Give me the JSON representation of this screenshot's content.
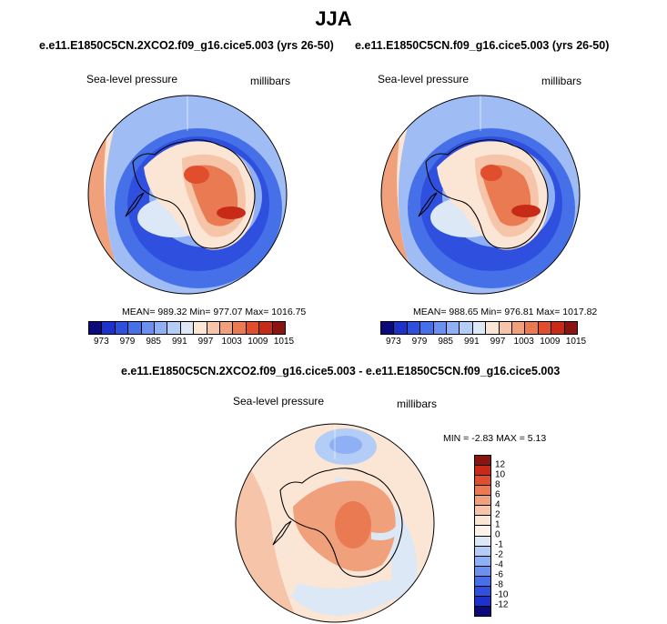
{
  "figure": {
    "title": "JJA"
  },
  "panels": [
    {
      "case": "e.e11.E1850C5CN.2XCO2.f09_g16.cice5.003 (yrs 26-50)",
      "variable": "Sea-level pressure",
      "units": "millibars",
      "stats": "MEAN= 989.32  Min= 977.07  Max= 1016.75"
    },
    {
      "case": "e.e11.E1850C5CN.f09_g16.cice5.003 (yrs 26-50)",
      "variable": "Sea-level pressure",
      "units": "millibars",
      "stats": "MEAN= 988.65  Min= 976.81  Max= 1017.82"
    },
    {
      "case": "e.e11.E1850C5CN.2XCO2.f09_g16.cice5.003 - e.e11.E1850C5CN.f09_g16.cice5.003",
      "variable": "Sea-level pressure",
      "units": "millibars",
      "stats": "MIN =  -2.83 MAX =  5.13"
    }
  ],
  "chart_data": [
    {
      "type": "heatmap",
      "projection": "south-polar-stereographic",
      "title": "e.e11.E1850C5CN.2XCO2.f09_g16.cice5.003 (yrs 26-50)",
      "field": "Sea-level pressure",
      "units": "millibars",
      "mean": 989.32,
      "min": 977.07,
      "max": 1016.75,
      "colorbar": {
        "orientation": "horizontal",
        "levels": [
          973,
          976,
          979,
          982,
          985,
          988,
          991,
          994,
          997,
          1000,
          1003,
          1006,
          1009,
          1012,
          1015
        ],
        "tick_labels": [
          "973",
          "979",
          "985",
          "991",
          "997",
          "1003",
          "1009",
          "1015"
        ],
        "colors": [
          "#0a0a7a",
          "#1c32c8",
          "#2f50de",
          "#4670e8",
          "#6a90f0",
          "#8fb0f4",
          "#b4cdf6",
          "#dce8f6",
          "#fbe6d6",
          "#f6c4a8",
          "#f0a07a",
          "#ea7a52",
          "#e04e2e",
          "#c82a18",
          "#8c1410"
        ]
      }
    },
    {
      "type": "heatmap",
      "projection": "south-polar-stereographic",
      "title": "e.e11.E1850C5CN.f09_g16.cice5.003 (yrs 26-50)",
      "field": "Sea-level pressure",
      "units": "millibars",
      "mean": 988.65,
      "min": 976.81,
      "max": 1017.82,
      "colorbar": {
        "orientation": "horizontal",
        "levels": [
          973,
          976,
          979,
          982,
          985,
          988,
          991,
          994,
          997,
          1000,
          1003,
          1006,
          1009,
          1012,
          1015
        ],
        "tick_labels": [
          "973",
          "979",
          "985",
          "991",
          "997",
          "1003",
          "1009",
          "1015"
        ],
        "colors": [
          "#0a0a7a",
          "#1c32c8",
          "#2f50de",
          "#4670e8",
          "#6a90f0",
          "#8fb0f4",
          "#b4cdf6",
          "#dce8f6",
          "#fbe6d6",
          "#f6c4a8",
          "#f0a07a",
          "#ea7a52",
          "#e04e2e",
          "#c82a18",
          "#8c1410"
        ]
      }
    },
    {
      "type": "heatmap",
      "projection": "south-polar-stereographic",
      "title": "e.e11.E1850C5CN.2XCO2.f09_g16.cice5.003 - e.e11.E1850C5CN.f09_g16.cice5.003",
      "field": "Sea-level pressure",
      "units": "millibars",
      "min": -2.83,
      "max": 5.13,
      "colorbar": {
        "orientation": "vertical",
        "tick_labels": [
          "12",
          "10",
          "8",
          "6",
          "4",
          "2",
          "1",
          "0",
          "-1",
          "-2",
          "-4",
          "-6",
          "-8",
          "-10",
          "-12"
        ],
        "colors": [
          "#8c1410",
          "#c82a18",
          "#e04e2e",
          "#ea7a52",
          "#f0a07a",
          "#f6c4a8",
          "#fbe6d6",
          "#fdf3ea",
          "#dce8f6",
          "#b4cdf6",
          "#8fb0f4",
          "#6a90f0",
          "#4670e8",
          "#2f50de",
          "#1c32c8",
          "#0a0a7a"
        ]
      }
    }
  ]
}
